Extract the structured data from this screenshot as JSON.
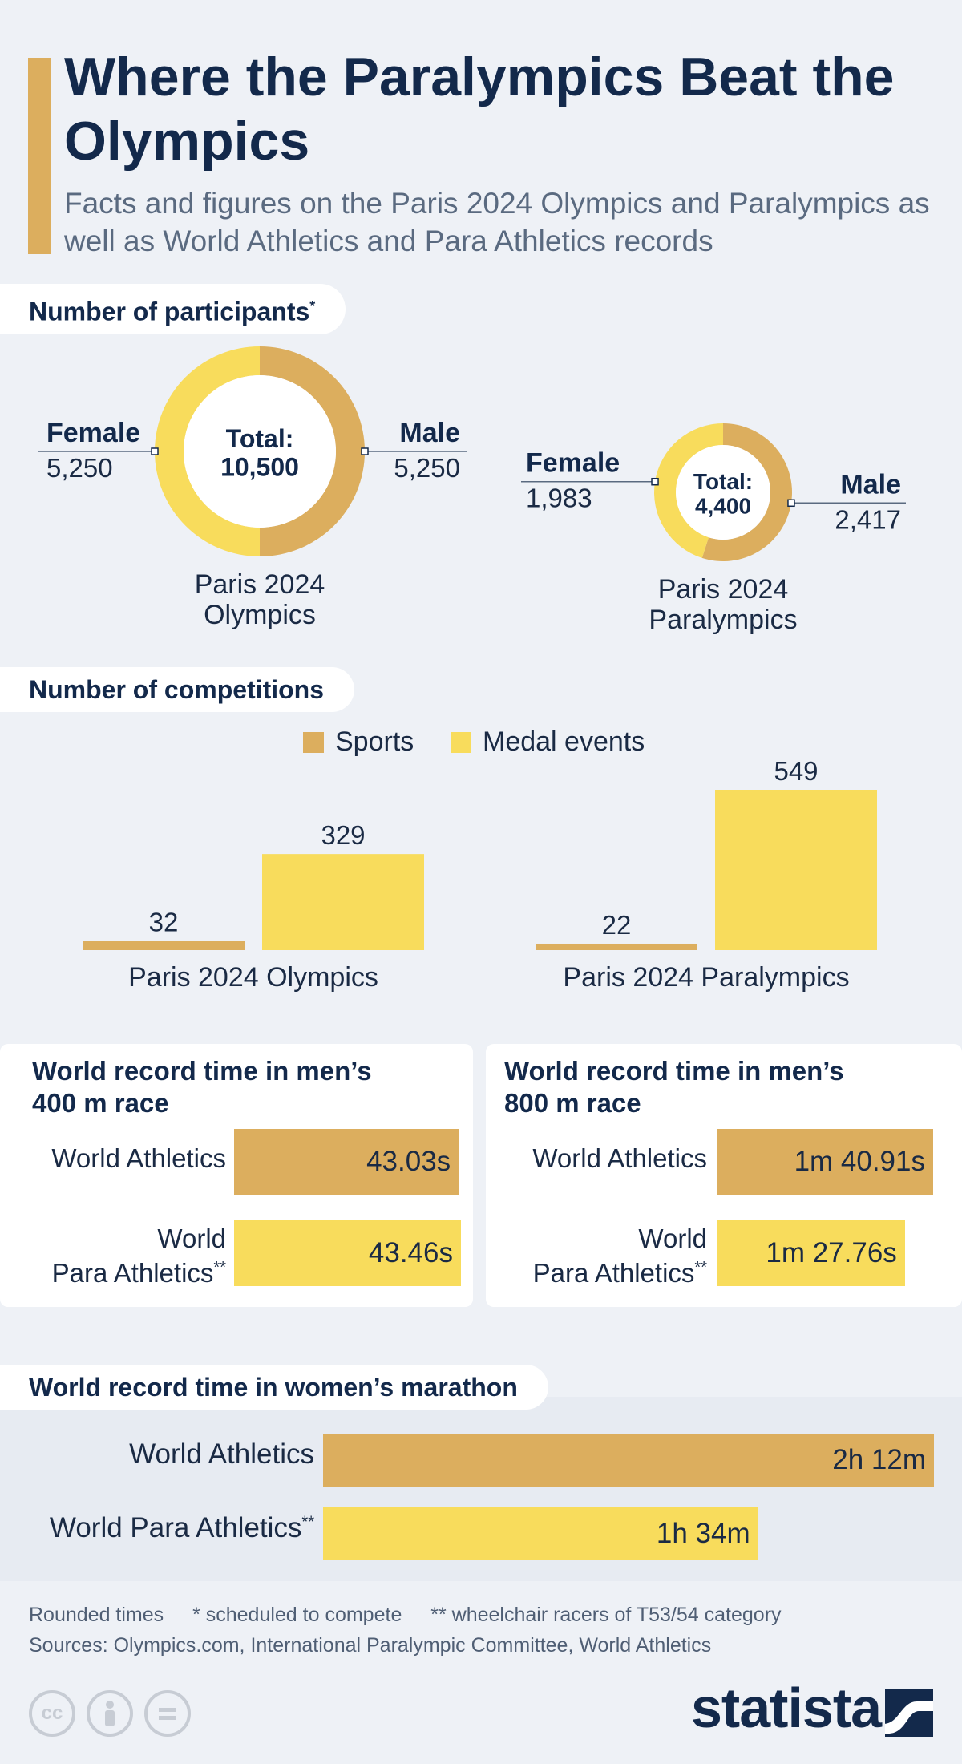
{
  "header": {
    "title": "Where the Paralympics Beat the Olympics",
    "subtitle": "Facts and figures on the Paris 2024 Olympics and Paralympics as well as World Athletics and Para Athletics records"
  },
  "colors": {
    "sports": "#dcae5e",
    "medal_events": "#f8dc5c",
    "male": "#dcae5e",
    "female": "#f8dc5c",
    "navy": "#13294b"
  },
  "sections": {
    "participants": {
      "title": "Number of participants",
      "marker": "*"
    },
    "competitions": {
      "title": "Number of competitions"
    },
    "record_400": {
      "title_line1": "World record time in men’s",
      "title_line2": "400 m race"
    },
    "record_800": {
      "title_line1": "World record time in men’s",
      "title_line2": "800 m race"
    },
    "marathon": {
      "title": "World record time in women’s marathon"
    }
  },
  "chart_data": [
    {
      "type": "pie",
      "caption_line1": "Paris 2024",
      "caption_line2": "Olympics",
      "center_label_line1": "Total:",
      "center_label_line2": "10,500",
      "slices": [
        {
          "name": "Male",
          "value": 5250,
          "value_label": "5,250"
        },
        {
          "name": "Female",
          "value": 5250,
          "value_label": "5,250"
        }
      ]
    },
    {
      "type": "pie",
      "caption_line1": "Paris 2024",
      "caption_line2": "Paralympics",
      "center_label_line1": "Total:",
      "center_label_line2": "4,400",
      "slices": [
        {
          "name": "Male",
          "value": 2417,
          "value_label": "2,417"
        },
        {
          "name": "Female",
          "value": 1983,
          "value_label": "1,983"
        }
      ]
    },
    {
      "type": "bar",
      "categories": [
        "Paris 2024 Olympics",
        "Paris 2024 Paralympics"
      ],
      "series": [
        {
          "name": "Sports",
          "values": [
            32,
            22
          ]
        },
        {
          "name": "Medal events",
          "values": [
            329,
            549
          ]
        }
      ],
      "ylim": [
        0,
        549
      ]
    },
    {
      "type": "bar",
      "orientation": "horizontal",
      "categories": [
        "World Athletics",
        "World Para Athletics"
      ],
      "category_marker": [
        "",
        "**"
      ],
      "values_seconds": [
        43.03,
        43.46
      ],
      "value_labels": [
        "43.03s",
        "43.46s"
      ],
      "xlim": [
        0,
        43.46
      ]
    },
    {
      "type": "bar",
      "orientation": "horizontal",
      "categories": [
        "World Athletics",
        "World Para Athletics"
      ],
      "category_marker": [
        "",
        "**"
      ],
      "values_seconds": [
        100.91,
        87.76
      ],
      "value_labels": [
        "1m 40.91s",
        "1m 27.76s"
      ],
      "xlim": [
        0,
        100.91
      ]
    },
    {
      "type": "bar",
      "orientation": "horizontal",
      "categories": [
        "World Athletics",
        "World Para Athletics"
      ],
      "category_marker": [
        "",
        "**"
      ],
      "values_minutes": [
        132,
        94
      ],
      "value_labels": [
        "2h 12m",
        "1h 34m"
      ],
      "xlim": [
        0,
        132
      ]
    }
  ],
  "footer": {
    "note1": "Rounded times",
    "note2": "* scheduled to compete",
    "note3": "** wheelchair racers of T53/54 category",
    "sources": "Sources: Olympics.com, International Paralympic Committee, World Athletics",
    "cc_icons": [
      "cc-icon",
      "person-icon",
      "equals-icon"
    ],
    "logo": "statista"
  }
}
